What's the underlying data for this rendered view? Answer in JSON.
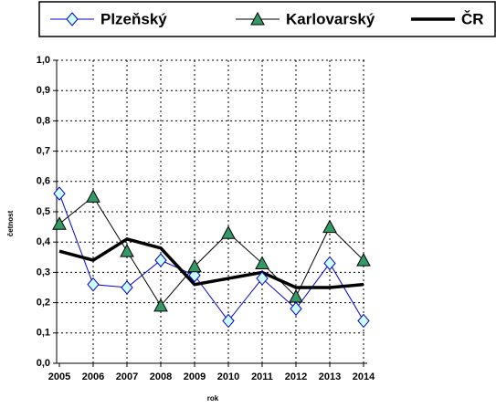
{
  "chart_data": {
    "type": "line",
    "x_label": "rok",
    "y_label": "četnost",
    "categories": [
      "2005",
      "2006",
      "2007",
      "2008",
      "2009",
      "2010",
      "2011",
      "2012",
      "2013",
      "2014"
    ],
    "series": [
      {
        "name": "Plzeňský",
        "color": "#0000cc",
        "marker": "diamond",
        "marker_fill": "#ccffff",
        "line_width": 1,
        "values": [
          0.56,
          0.26,
          0.25,
          0.34,
          0.29,
          0.14,
          0.28,
          0.18,
          0.33,
          0.14
        ]
      },
      {
        "name": "Karlovarský",
        "color": "#000000",
        "marker": "triangle",
        "marker_fill": "#339966",
        "line_width": 1,
        "values": [
          0.46,
          0.55,
          0.37,
          0.19,
          0.32,
          0.43,
          0.33,
          0.22,
          0.45,
          0.34
        ]
      },
      {
        "name": "ČR",
        "color": "#000000",
        "marker": "none",
        "marker_fill": "none",
        "line_width": 3.5,
        "values": [
          0.37,
          0.34,
          0.41,
          0.38,
          0.26,
          0.28,
          0.3,
          0.25,
          0.25,
          0.26
        ]
      }
    ],
    "ylim": [
      0,
      1
    ],
    "yticks": [
      {
        "value": 0,
        "label": "0,0"
      },
      {
        "value": 0.1,
        "label": "0,1"
      },
      {
        "value": 0.2,
        "label": "0,2"
      },
      {
        "value": 0.3,
        "label": "0,3"
      },
      {
        "value": 0.4,
        "label": "0,4"
      },
      {
        "value": 0.5,
        "label": "0,5"
      },
      {
        "value": 0.6,
        "label": "0,6"
      },
      {
        "value": 0.7,
        "label": "0,7"
      },
      {
        "value": 0.8,
        "label": "0,8"
      },
      {
        "value": 0.9,
        "label": "0,9"
      },
      {
        "value": 1,
        "label": "1,0"
      }
    ],
    "grid": true,
    "legend": "top"
  }
}
